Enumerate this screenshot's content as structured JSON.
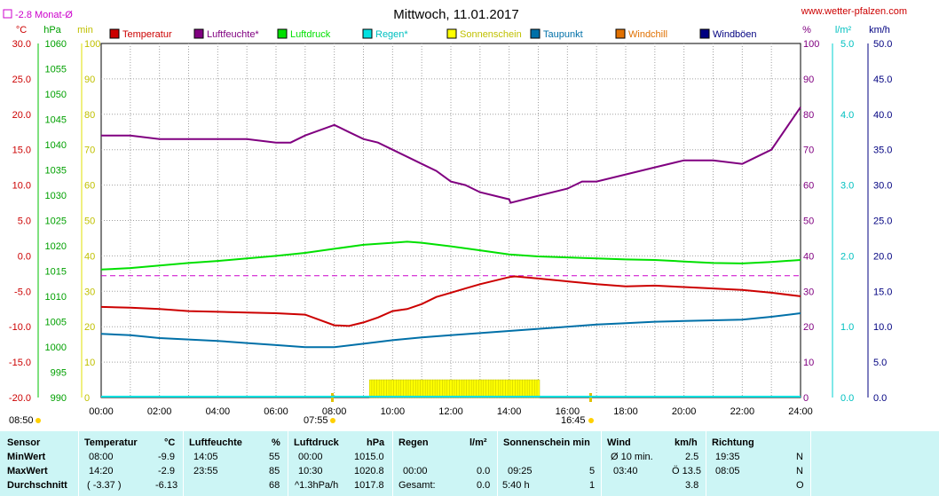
{
  "header": {
    "title": "Mittwoch, 11.01.2017",
    "site": "www.wetter-pfalzen.com",
    "month_avg": "-2.8 Monat-Ø",
    "unit_left": [
      "°C",
      "hPa",
      "min"
    ],
    "unit_right": [
      "%",
      "l/m²",
      "km/h"
    ]
  },
  "below_axis": {
    "sunrise_left": "08:50",
    "sunrise": "07:55",
    "sunset": "16:45"
  },
  "colors": {
    "temperature": "#cc0000",
    "humidity": "#800080",
    "pressure": "#00e000",
    "rain": "#00e0e0",
    "sunshine": "#ffff00",
    "dewpoint": "#0070a8",
    "windchill": "#e07000",
    "gusts": "#000080",
    "month_avg_line": "#cc00cc"
  },
  "chart_data": {
    "type": "line",
    "title": "Mittwoch, 11.01.2017",
    "x_ticks": [
      "00:00",
      "02:00",
      "04:00",
      "06:00",
      "08:00",
      "10:00",
      "12:00",
      "14:00",
      "16:00",
      "18:00",
      "20:00",
      "22:00",
      "24:00"
    ],
    "xlim": [
      0,
      24
    ],
    "axes": {
      "temperature": {
        "ticks": [
          "30.0",
          "25.0",
          "20.0",
          "15.0",
          "10.0",
          "5.0",
          "0.0",
          "-5.0",
          "-10.0",
          "-15.0",
          "-20.0"
        ],
        "lim": [
          -20,
          30
        ]
      },
      "pressure": {
        "ticks": [
          "1060",
          "1055",
          "1050",
          "1045",
          "1040",
          "1035",
          "1030",
          "1025",
          "1020",
          "1015",
          "1010",
          "1005",
          "1000",
          "995",
          "990"
        ],
        "lim": [
          990,
          1060
        ]
      },
      "minutes": {
        "ticks": [
          "100",
          "90",
          "80",
          "70",
          "60",
          "50",
          "40",
          "30",
          "20",
          "10",
          "0"
        ],
        "lim": [
          0,
          100
        ]
      },
      "humidity": {
        "ticks": [
          "100",
          "90",
          "80",
          "70",
          "60",
          "50",
          "40",
          "30",
          "20",
          "10",
          "0"
        ],
        "lim": [
          0,
          100
        ]
      },
      "rain": {
        "ticks": [
          "5.0",
          "4.0",
          "3.0",
          "2.0",
          "1.0",
          "0.0"
        ],
        "lim": [
          0,
          5
        ]
      },
      "wind": {
        "ticks": [
          "50.0",
          "45.0",
          "40.0",
          "35.0",
          "30.0",
          "25.0",
          "20.0",
          "15.0",
          "10.0",
          "5.0",
          "0.0"
        ],
        "lim": [
          0,
          50
        ]
      }
    },
    "legend": [
      "Temperatur",
      "Luftfeuchte*",
      "Luftdruck",
      "Regen*",
      "Sonnenschein",
      "Taupunkt",
      "Windchill",
      "Windböen"
    ],
    "month_avg_temperature": -2.8,
    "series": [
      {
        "name": "Temperatur",
        "axis": "temperature",
        "x": [
          0,
          1,
          2,
          3,
          4,
          5,
          6,
          7,
          8,
          8.5,
          9,
          9.5,
          10,
          10.5,
          11,
          11.5,
          12,
          12.5,
          13,
          13.5,
          14,
          14.2,
          15,
          16,
          17,
          18,
          19,
          20,
          21,
          22,
          23,
          24
        ],
        "values": [
          -7.2,
          -7.3,
          -7.5,
          -7.8,
          -7.9,
          -8.0,
          -8.1,
          -8.3,
          -9.8,
          -9.9,
          -9.4,
          -8.7,
          -7.8,
          -7.5,
          -6.8,
          -5.8,
          -5.2,
          -4.6,
          -4.0,
          -3.5,
          -3.0,
          -2.9,
          -3.2,
          -3.6,
          -4.0,
          -4.3,
          -4.2,
          -4.4,
          -4.6,
          -4.8,
          -5.2,
          -5.7
        ]
      },
      {
        "name": "Luftfeuchte*",
        "axis": "humidity",
        "x": [
          0,
          1,
          2,
          3,
          4,
          5,
          6,
          6.5,
          7,
          8,
          8.5,
          9,
          9.5,
          10,
          10.5,
          11,
          11.5,
          12,
          12.5,
          13,
          13.5,
          14,
          14.05,
          15,
          16,
          16.5,
          17,
          18,
          19,
          20,
          21,
          22,
          23,
          24
        ],
        "values": [
          74,
          74,
          73,
          73,
          73,
          73,
          72,
          72,
          74,
          77,
          75,
          73,
          72,
          70,
          68,
          66,
          64,
          61,
          60,
          58,
          57,
          56,
          55,
          57,
          59,
          61,
          61,
          63,
          65,
          67,
          67,
          66,
          70,
          82
        ]
      },
      {
        "name": "Luftdruck",
        "axis": "pressure",
        "x": [
          0,
          1,
          2,
          3,
          4,
          5,
          6,
          7,
          8,
          9,
          10,
          10.5,
          11,
          12,
          13,
          14,
          15,
          16,
          17,
          18,
          19,
          20,
          21,
          22,
          23,
          24
        ],
        "values": [
          1015.3,
          1015.6,
          1016.1,
          1016.6,
          1017.0,
          1017.5,
          1018.0,
          1018.6,
          1019.4,
          1020.2,
          1020.6,
          1020.8,
          1020.6,
          1019.9,
          1019.1,
          1018.3,
          1017.9,
          1017.7,
          1017.5,
          1017.3,
          1017.2,
          1016.9,
          1016.6,
          1016.5,
          1016.8,
          1017.2
        ]
      },
      {
        "name": "Taupunkt",
        "axis": "temperature",
        "x": [
          0,
          1,
          2,
          3,
          4,
          5,
          6,
          7,
          8,
          9,
          10,
          11,
          12,
          13,
          14,
          15,
          16,
          17,
          18,
          19,
          20,
          21,
          22,
          23,
          24
        ],
        "values": [
          -11.0,
          -11.2,
          -11.6,
          -11.8,
          -12.0,
          -12.3,
          -12.6,
          -12.9,
          -12.9,
          -12.4,
          -11.9,
          -11.5,
          -11.2,
          -10.9,
          -10.6,
          -10.3,
          -10.0,
          -9.7,
          -9.5,
          -9.3,
          -9.2,
          -9.1,
          -9.0,
          -8.6,
          -8.1
        ]
      }
    ],
    "sunshine_minutes": {
      "start": 9.25,
      "end": 15.0,
      "value": 5
    }
  },
  "stats": {
    "headers": {
      "sensor": "Sensor",
      "temp": "Temperatur",
      "temp_unit": "°C",
      "hum": "Luftfeuchte",
      "hum_unit": "%",
      "press": "Luftdruck",
      "press_unit": "hPa",
      "rain": "Regen",
      "rain_unit": "l/m²",
      "sun": "Sonnenschein min",
      "wind": "Wind",
      "wind_unit": "km/h",
      "dir": "Richtung"
    },
    "rows": [
      {
        "label": "MinWert",
        "temp_time": "08:00",
        "temp": "-9.9",
        "hum_time": "14:05",
        "hum": "55",
        "press_time": "00:00",
        "press": "1015.0",
        "rain_time": "",
        "rain": "",
        "sun_time": "",
        "sun": "",
        "wind_time": "Ø 10 min.",
        "wind": "2.5",
        "dir_time": "19:35",
        "dir": "N"
      },
      {
        "label": "MaxWert",
        "temp_time": "14:20",
        "temp": "-2.9",
        "hum_time": "23:55",
        "hum": "85",
        "press_time": "10:30",
        "press": "1020.8",
        "rain_time": "00:00",
        "rain": "0.0",
        "sun_time": "09:25",
        "sun": "5",
        "wind_time": "03:40",
        "wind": "Ö 13.5",
        "dir_time": "08:05",
        "dir": "N"
      },
      {
        "label": "Durchschnitt",
        "temp_time": "( -3.37 )",
        "temp": "-6.13",
        "hum_time": "",
        "hum": "68",
        "press_time": "^1.3hPa/h",
        "press": "1017.8",
        "rain_time": "Gesamt:",
        "rain": "0.0",
        "sun_time": "5:40 h",
        "sun": "1",
        "wind_time": "",
        "wind": "3.8",
        "dir_time": "",
        "dir": "O"
      }
    ]
  }
}
